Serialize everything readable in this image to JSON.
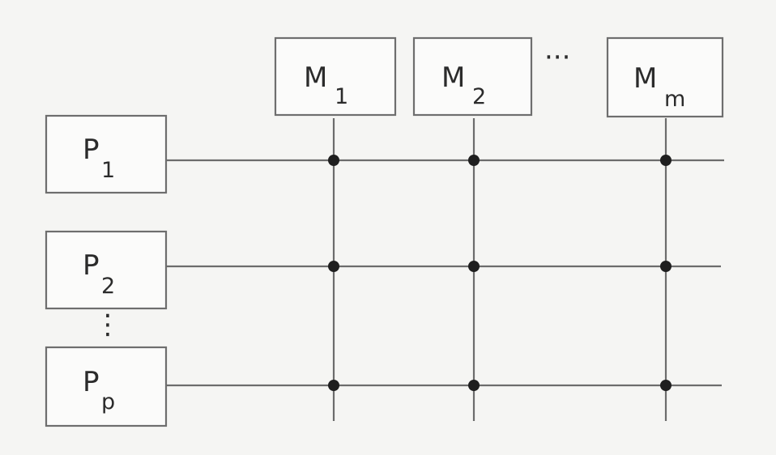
{
  "diagram": {
    "memory_modules": [
      {
        "name": "M",
        "index": "1"
      },
      {
        "name": "M",
        "index": "2"
      },
      {
        "name": "M",
        "index": "m"
      }
    ],
    "processors": [
      {
        "name": "P",
        "index": "1"
      },
      {
        "name": "P",
        "index": "2"
      },
      {
        "name": "P",
        "index": "p"
      }
    ],
    "horizontal_ellipsis": "···",
    "vertical_ellipsis": "⋮"
  }
}
